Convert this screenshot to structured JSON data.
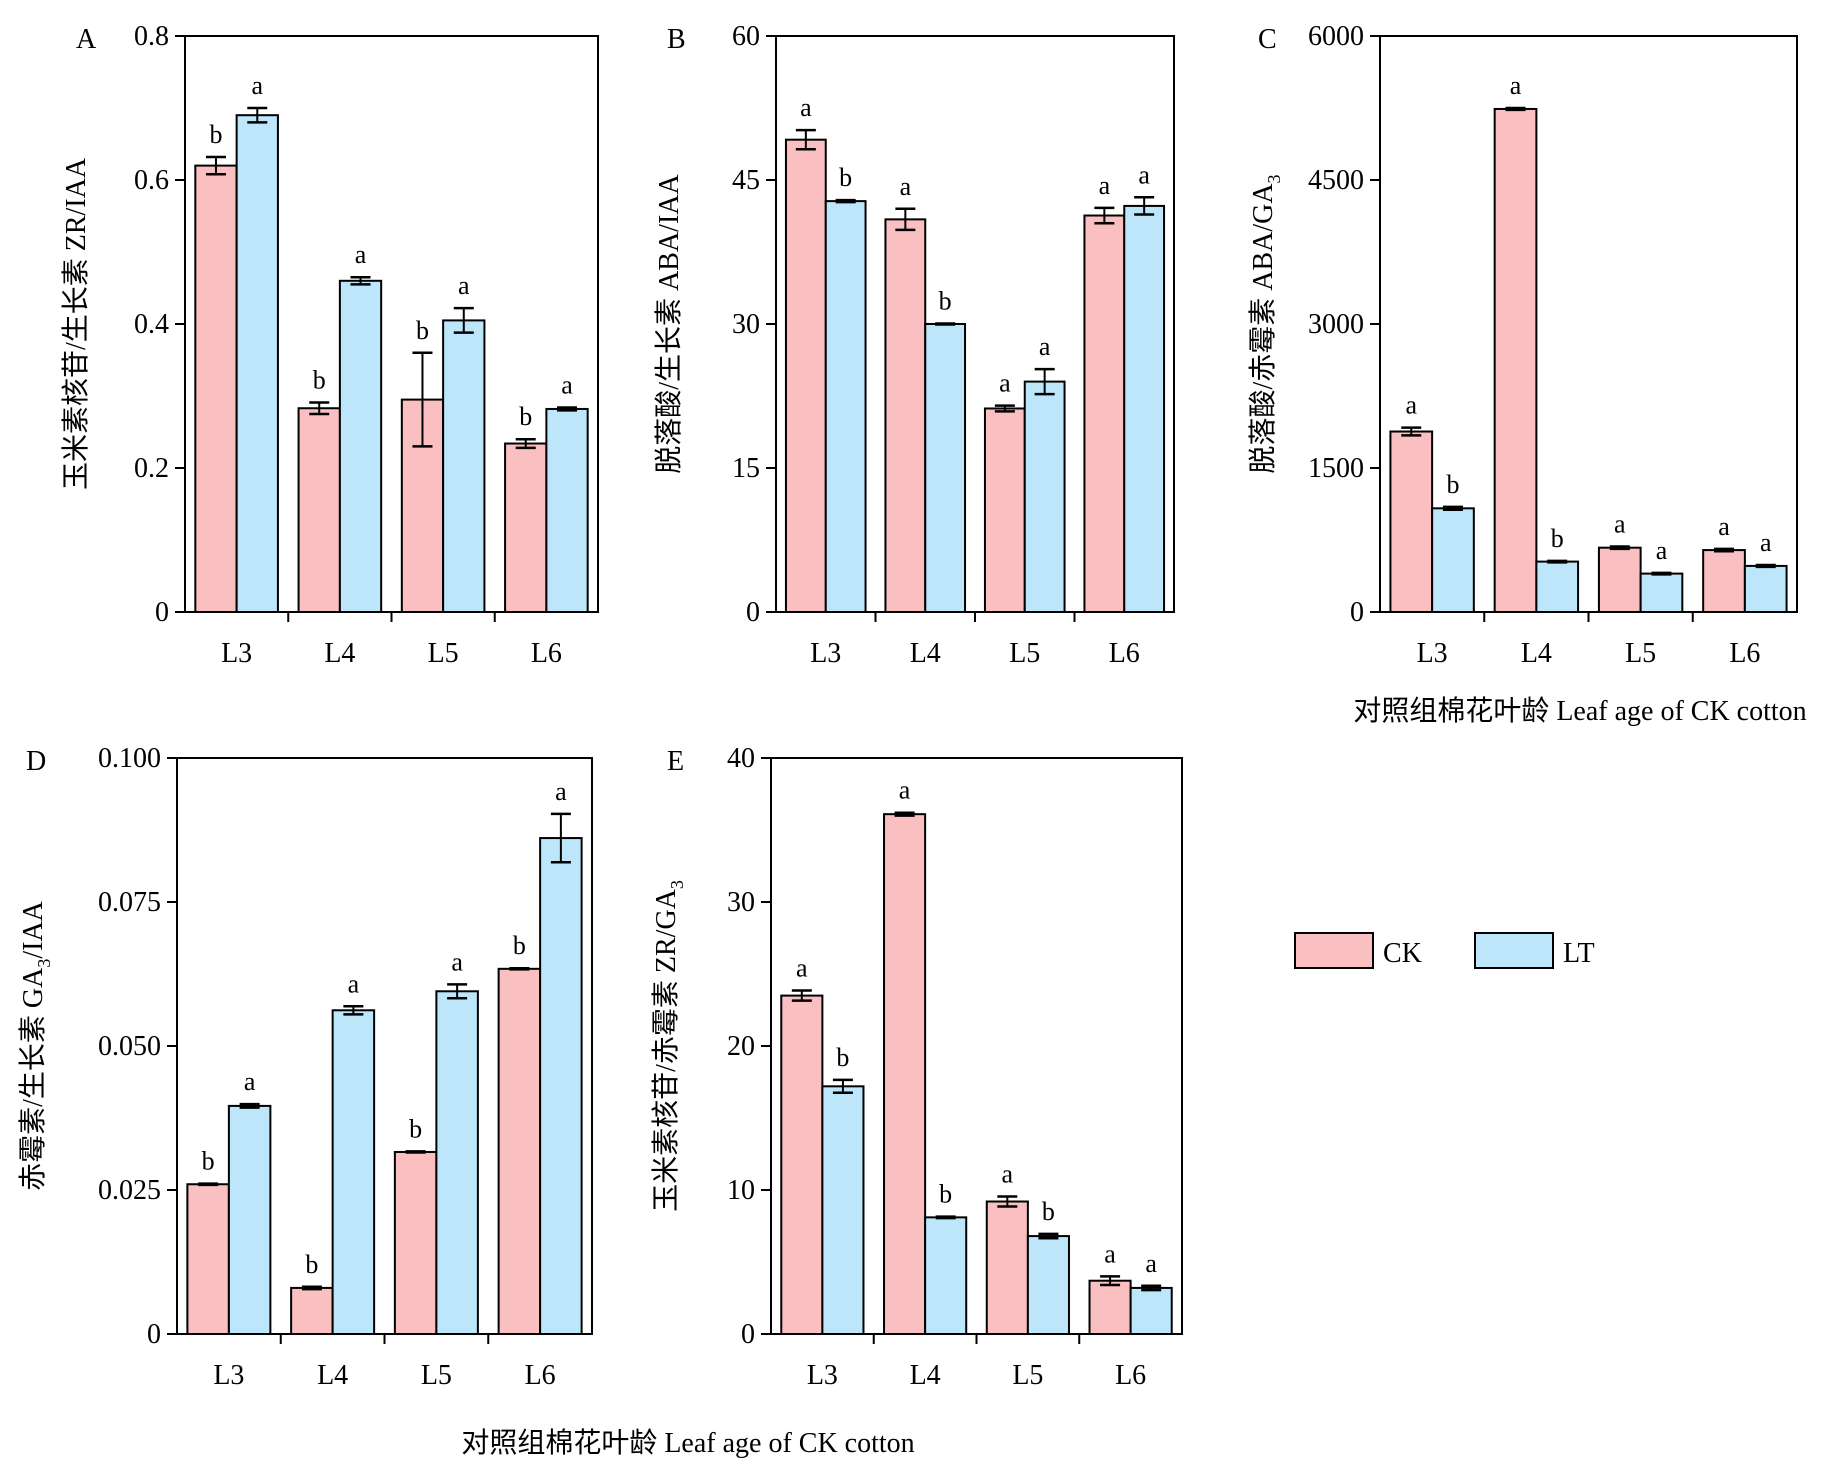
{
  "figure": {
    "xlabel_right": "对照组棉花叶龄 Leaf age of CK cotton",
    "xlabel_bottom": "对照组棉花叶龄 Leaf age of CK cotton"
  },
  "legend": {
    "items": [
      {
        "label": "CK",
        "color": "#f9bfc1"
      },
      {
        "label": "LT",
        "color": "#bde6fa"
      }
    ]
  },
  "chart_data": [
    {
      "id": "A",
      "type": "bar",
      "panel_label": "A",
      "ylabel": "玉米素核苷/生长素 ZR/IAA",
      "ylabel_sub": "",
      "ylim": [
        0,
        0.8
      ],
      "yticks": [
        "0",
        "0.2",
        "0.4",
        "0.6",
        "0.8"
      ],
      "ytick_values": [
        0,
        0.2,
        0.4,
        0.6,
        0.8
      ],
      "categories": [
        "L3",
        "L4",
        "L5",
        "L6"
      ],
      "series": [
        {
          "name": "CK",
          "values": [
            0.62,
            0.283,
            0.295,
            0.234
          ],
          "errors": [
            0.012,
            0.008,
            0.065,
            0.006
          ],
          "letters": [
            "b",
            "b",
            "b",
            "b"
          ]
        },
        {
          "name": "LT",
          "values": [
            0.69,
            0.46,
            0.405,
            0.282
          ],
          "errors": [
            0.01,
            0.005,
            0.017,
            0.002
          ],
          "letters": [
            "a",
            "a",
            "a",
            "a"
          ]
        }
      ]
    },
    {
      "id": "B",
      "type": "bar",
      "panel_label": "B",
      "ylabel": "脱落酸/生长素 ABA/IAA",
      "ylabel_sub": "",
      "ylim": [
        0,
        60
      ],
      "yticks": [
        "0",
        "15",
        "30",
        "45",
        "60"
      ],
      "ytick_values": [
        0,
        15,
        30,
        45,
        60
      ],
      "categories": [
        "L3",
        "L4",
        "L5",
        "L6"
      ],
      "series": [
        {
          "name": "CK",
          "values": [
            49.2,
            40.9,
            21.2,
            41.3
          ],
          "errors": [
            1.0,
            1.1,
            0.3,
            0.8
          ],
          "letters": [
            "a",
            "a",
            "a",
            "a"
          ]
        },
        {
          "name": "LT",
          "values": [
            42.8,
            30.0,
            24.0,
            42.3
          ],
          "errors": [
            0.1,
            0.05,
            1.3,
            0.9
          ],
          "letters": [
            "b",
            "b",
            "a",
            "a"
          ]
        }
      ]
    },
    {
      "id": "C",
      "type": "bar",
      "panel_label": "C",
      "ylabel": "脱落酸/赤霉素 ABA/GA",
      "ylabel_sub": "3",
      "ylim": [
        0,
        6000
      ],
      "yticks": [
        "0",
        "1500",
        "3000",
        "4500",
        "6000"
      ],
      "ytick_values": [
        0,
        1500,
        3000,
        4500,
        6000
      ],
      "categories": [
        "L3",
        "L4",
        "L5",
        "L6"
      ],
      "series": [
        {
          "name": "CK",
          "values": [
            1880,
            5240,
            670,
            645
          ],
          "errors": [
            40,
            10,
            12,
            12
          ],
          "letters": [
            "a",
            "a",
            "a",
            "a"
          ]
        },
        {
          "name": "LT",
          "values": [
            1080,
            525,
            400,
            480
          ],
          "errors": [
            15,
            8,
            8,
            10
          ],
          "letters": [
            "b",
            "b",
            "a",
            "a"
          ]
        }
      ]
    },
    {
      "id": "D",
      "type": "bar",
      "panel_label": "D",
      "ylabel": "赤霉素/生长素 GA",
      "ylabel_sub": "3",
      "ylabel_tail": "/IAA",
      "ylim": [
        0,
        0.1
      ],
      "yticks": [
        "0",
        "0.025",
        "0.050",
        "0.075",
        "0.100"
      ],
      "ytick_values": [
        0,
        0.025,
        0.05,
        0.075,
        0.1
      ],
      "categories": [
        "L3",
        "L4",
        "L5",
        "L6"
      ],
      "series": [
        {
          "name": "CK",
          "values": [
            0.026,
            0.008,
            0.0316,
            0.0634
          ],
          "errors": [
            0.0001,
            0.0002,
            0.0001,
            0.0001
          ],
          "letters": [
            "b",
            "b",
            "b",
            "b"
          ]
        },
        {
          "name": "LT",
          "values": [
            0.0396,
            0.0562,
            0.0595,
            0.0861
          ],
          "errors": [
            0.0003,
            0.0007,
            0.0012,
            0.0042
          ],
          "letters": [
            "a",
            "a",
            "a",
            "a"
          ]
        }
      ]
    },
    {
      "id": "E",
      "type": "bar",
      "panel_label": "E",
      "ylabel": "玉米素核苷/赤霉素 ZR/GA",
      "ylabel_sub": "3",
      "ylim": [
        0,
        40
      ],
      "yticks": [
        "0",
        "10",
        "20",
        "30",
        "40"
      ],
      "ytick_values": [
        0,
        10,
        20,
        30,
        40
      ],
      "categories": [
        "L3",
        "L4",
        "L5",
        "L6"
      ],
      "series": [
        {
          "name": "CK",
          "values": [
            23.5,
            36.1,
            9.2,
            3.7
          ],
          "errors": [
            0.35,
            0.1,
            0.35,
            0.3
          ],
          "letters": [
            "a",
            "a",
            "a",
            "a"
          ]
        },
        {
          "name": "LT",
          "values": [
            17.2,
            8.1,
            6.8,
            3.2
          ],
          "errors": [
            0.45,
            0.05,
            0.15,
            0.15
          ],
          "letters": [
            "b",
            "b",
            "b",
            "a"
          ]
        }
      ]
    }
  ]
}
